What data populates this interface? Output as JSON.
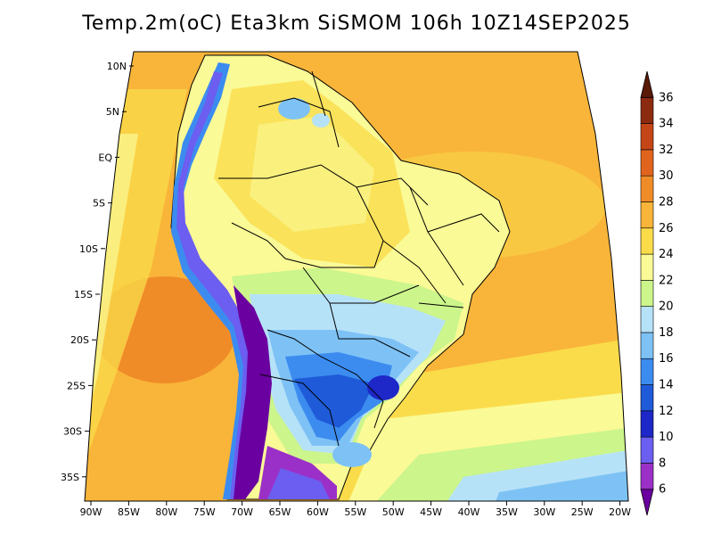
{
  "title": "Temp.2m(oC)  Eta3km  SiSMOM  106h  10Z14SEP2025",
  "map": {
    "variable": "Temp.2m",
    "units": "oC",
    "model": "Eta3km",
    "product": "SiSMOM",
    "forecast_hour": "106h",
    "valid_time": "10Z14SEP2025",
    "lon_range": [
      -91,
      -20
    ],
    "lat_range": [
      -38,
      11
    ],
    "lat_ticks": [
      "10N",
      "5N",
      "EQ",
      "5S",
      "10S",
      "15S",
      "20S",
      "25S",
      "30S",
      "35S"
    ],
    "lon_ticks": [
      "90W",
      "85W",
      "80W",
      "75W",
      "70W",
      "65W",
      "60W",
      "55W",
      "50W",
      "45W",
      "40W",
      "35W",
      "30W",
      "25W",
      "20W"
    ]
  },
  "colorbar": {
    "labels": [
      "6",
      "8",
      "10",
      "12",
      "14",
      "16",
      "18",
      "20",
      "22",
      "24",
      "26",
      "28",
      "30",
      "32",
      "34",
      "36"
    ],
    "colors": [
      "#6a00a0",
      "#9b30c8",
      "#6b5ef0",
      "#1e28c8",
      "#1f5ad8",
      "#3c8cf0",
      "#7ec2f5",
      "#b6e2f8",
      "#ccf58c",
      "#fafa96",
      "#fadc4b",
      "#f9b53a",
      "#f08c28",
      "#e0641e",
      "#c44618",
      "#8c2a10",
      "#5a1a08"
    ]
  }
}
